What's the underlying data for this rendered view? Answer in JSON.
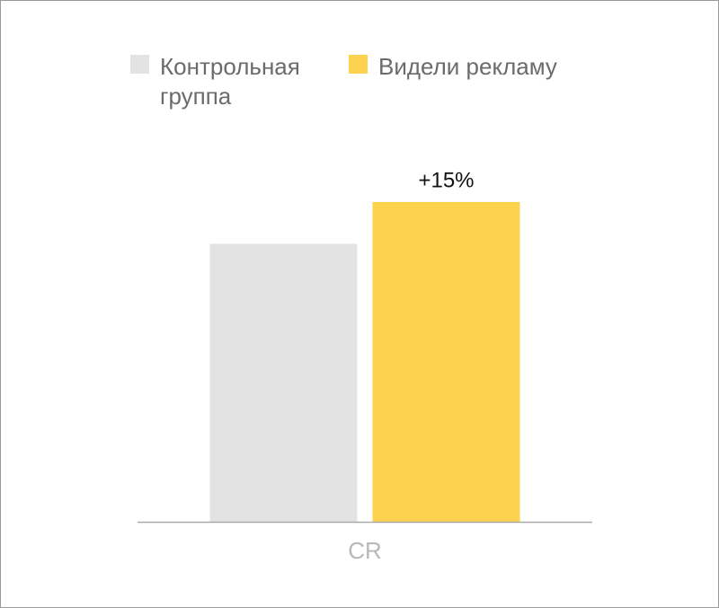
{
  "chart_data": {
    "type": "bar",
    "categories": [
      "CR"
    ],
    "series": [
      {
        "name": "Контрольная группа",
        "color": "#e3e3e3",
        "values": [
          100
        ]
      },
      {
        "name": "Видели рекламу",
        "color": "#fdd24e",
        "values": [
          115
        ]
      }
    ],
    "annotation": "+15%"
  }
}
